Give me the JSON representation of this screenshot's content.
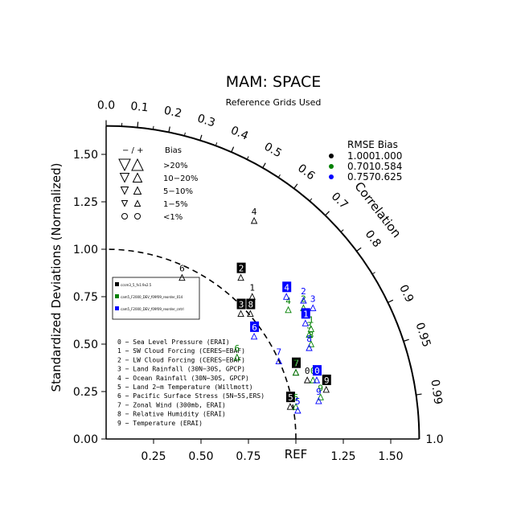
{
  "title": "MAM: SPACE",
  "subtitle": "Reference Grids Used",
  "y_axis_label": "Standardized Deviations (Normalized)",
  "corr_axis_label": "Correlation",
  "ref_label": "REF",
  "x_ticks": [
    "0.25",
    "0.50",
    "0.75",
    "1.25",
    "1.50"
  ],
  "y_ticks": [
    "0.00",
    "0.25",
    "0.50",
    "0.75",
    "1.00",
    "1.25",
    "1.50"
  ],
  "corr_ticks": [
    "0.0",
    "0.1",
    "0.2",
    "0.3",
    "0.4",
    "0.5",
    "0.6",
    "0.7",
    "0.8",
    "0.9",
    "0.95",
    "0.99",
    "1.0"
  ],
  "bias_legend": {
    "header_sign": "− / +",
    "header_bias": "Bias",
    "rows": [
      ">20%",
      "10−20%",
      "5−10%",
      "1−5%",
      "<1%"
    ]
  },
  "rmse_legend": {
    "header": "RMSE  Bias",
    "rows": [
      {
        "color": "#000000",
        "rmse": "1.000",
        "bias": "1.000"
      },
      {
        "color": "#008000",
        "rmse": "0.701",
        "bias": "0.584"
      },
      {
        "color": "#0000ff",
        "rmse": "0.757",
        "bias": "0.625"
      }
    ]
  },
  "case_legend": [
    {
      "color": "#000000",
      "label": "ccsm3_5_fv1.9x2.5"
    },
    {
      "color": "#008000",
      "label": "cam5_F2000_DEV_f09f09_reorder_014"
    },
    {
      "color": "#0000ff",
      "label": "cam5_F2000_DEV_f09f09_reorder_cntrl"
    }
  ],
  "variable_legend": [
    "0 − Sea Level Pressure (ERAI)",
    "1 − SW Cloud Forcing (CERES−EBAF)",
    "2 − LW Cloud Forcing (CERES−EBAF)",
    "3 − Land Rainfall (30N−30S, GPCP)",
    "4 − Ocean Rainfall (30N−30S, GPCP)",
    "5 − Land 2−m Temperature (Willmott)",
    "6 − Pacific Surface Stress (5N−5S,ERS)",
    "7 − Zonal Wind (300mb, ERAI)",
    "8 − Relative Humidity (ERAI)",
    "9 − Temperature (ERAI)"
  ],
  "chart_data": {
    "type": "scatter",
    "subtype": "taylor-diagram",
    "title": "MAM: SPACE",
    "subtitle": "Reference Grids Used",
    "ylabel": "Standardized Deviations (Normalized)",
    "radial_range": [
      0,
      1.65
    ],
    "reference_std": 1.0,
    "points": [
      {
        "case": 0,
        "var": "0",
        "x": 1.06,
        "y": 0.33,
        "highlight": false
      },
      {
        "case": 0,
        "var": "2",
        "x": 0.71,
        "y": 0.87,
        "highlight": true
      },
      {
        "case": 0,
        "var": "3",
        "x": 0.71,
        "y": 0.68,
        "highlight": true
      },
      {
        "case": 0,
        "var": "4",
        "x": 0.78,
        "y": 1.17,
        "highlight": false
      },
      {
        "case": 0,
        "var": "5",
        "x": 0.97,
        "y": 0.19,
        "highlight": true
      },
      {
        "case": 0,
        "var": "6",
        "x": 0.4,
        "y": 0.87,
        "highlight": false
      },
      {
        "case": 0,
        "var": "7",
        "x": 1.0,
        "y": 0.37,
        "highlight": true
      },
      {
        "case": 0,
        "var": "8",
        "x": 0.76,
        "y": 0.68,
        "highlight": true
      },
      {
        "case": 0,
        "var": "9",
        "x": 1.16,
        "y": 0.28,
        "highlight": true
      },
      {
        "case": 0,
        "var": "1",
        "x": 0.77,
        "y": 0.77,
        "highlight": false
      },
      {
        "case": 1,
        "var": "0",
        "x": 1.09,
        "y": 0.33,
        "highlight": false
      },
      {
        "case": 1,
        "var": "1",
        "x": 1.08,
        "y": 0.6,
        "highlight": false
      },
      {
        "case": 1,
        "var": "2",
        "x": 1.04,
        "y": 0.71,
        "highlight": false
      },
      {
        "case": 1,
        "var": "3",
        "x": 1.07,
        "y": 0.57,
        "highlight": false
      },
      {
        "case": 1,
        "var": "4",
        "x": 0.96,
        "y": 0.7,
        "highlight": false
      },
      {
        "case": 1,
        "var": "5",
        "x": 1.0,
        "y": 0.19,
        "highlight": false
      },
      {
        "case": 1,
        "var": "6",
        "x": 0.69,
        "y": 0.45,
        "highlight": false
      },
      {
        "case": 1,
        "var": "7",
        "x": 1.0,
        "y": 0.37,
        "highlight": false
      },
      {
        "case": 1,
        "var": "8",
        "x": 1.08,
        "y": 0.52,
        "highlight": false
      },
      {
        "case": 1,
        "var": "9",
        "x": 1.13,
        "y": 0.24,
        "highlight": false
      },
      {
        "case": 2,
        "var": "0",
        "x": 1.11,
        "y": 0.33,
        "highlight": true
      },
      {
        "case": 2,
        "var": "1",
        "x": 1.05,
        "y": 0.63,
        "highlight": true
      },
      {
        "case": 2,
        "var": "2",
        "x": 1.04,
        "y": 0.75,
        "highlight": false
      },
      {
        "case": 2,
        "var": "3",
        "x": 1.09,
        "y": 0.71,
        "highlight": false
      },
      {
        "case": 2,
        "var": "4",
        "x": 0.95,
        "y": 0.77,
        "highlight": true
      },
      {
        "case": 2,
        "var": "5",
        "x": 1.01,
        "y": 0.17,
        "highlight": false
      },
      {
        "case": 2,
        "var": "6",
        "x": 0.78,
        "y": 0.56,
        "highlight": true
      },
      {
        "case": 2,
        "var": "7",
        "x": 0.91,
        "y": 0.43,
        "highlight": false
      },
      {
        "case": 2,
        "var": "8",
        "x": 1.07,
        "y": 0.5,
        "highlight": false
      },
      {
        "case": 2,
        "var": "9",
        "x": 1.12,
        "y": 0.22,
        "highlight": false
      }
    ]
  }
}
